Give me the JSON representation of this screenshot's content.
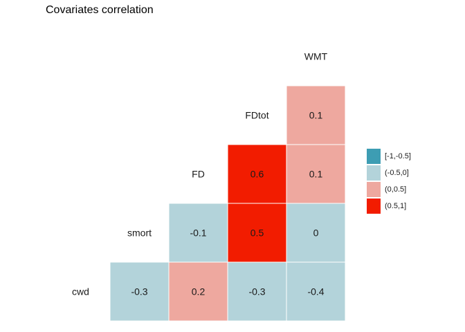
{
  "chart_data": {
    "type": "heatmap",
    "title": "Covariates correlation",
    "variables": [
      "cwd",
      "smort",
      "FD",
      "FDtot",
      "WMT"
    ],
    "cells": [
      {
        "row": "cwd",
        "col": "smort",
        "value": -0.3,
        "bin": "(-0.5,0]"
      },
      {
        "row": "cwd",
        "col": "FD",
        "value": 0.2,
        "bin": "(0,0.5]"
      },
      {
        "row": "cwd",
        "col": "FDtot",
        "value": -0.3,
        "bin": "(-0.5,0]"
      },
      {
        "row": "cwd",
        "col": "WMT",
        "value": -0.4,
        "bin": "(-0.5,0]"
      },
      {
        "row": "smort",
        "col": "FD",
        "value": -0.1,
        "bin": "(-0.5,0]"
      },
      {
        "row": "smort",
        "col": "FDtot",
        "value": 0.5,
        "bin": "(0.5,1]"
      },
      {
        "row": "smort",
        "col": "WMT",
        "value": 0,
        "bin": "(-0.5,0]"
      },
      {
        "row": "FD",
        "col": "FDtot",
        "value": 0.6,
        "bin": "(0.5,1]"
      },
      {
        "row": "FD",
        "col": "WMT",
        "value": 0.1,
        "bin": "(0,0.5]"
      },
      {
        "row": "FDtot",
        "col": "WMT",
        "value": 0.1,
        "bin": "(0,0.5]"
      }
    ],
    "legend": [
      {
        "label": "[-1,-0.5]",
        "color": "#3d9db3"
      },
      {
        "label": "(-0.5,0]",
        "color": "#b3d3da"
      },
      {
        "label": "(0,0.5]",
        "color": "#eea89f"
      },
      {
        "label": "(0.5,1]",
        "color": "#f21c00"
      }
    ],
    "legend_position": "right",
    "grid": false
  }
}
